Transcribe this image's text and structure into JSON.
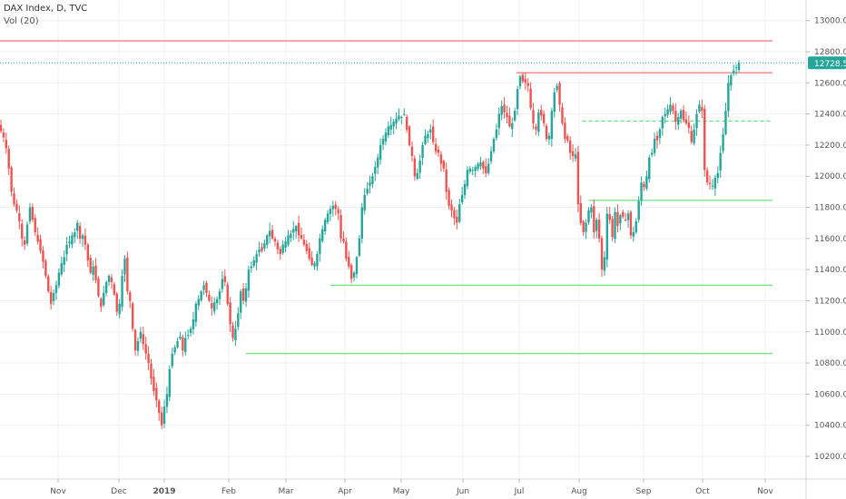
{
  "legend": {
    "title": "DAX Index, D, TVC",
    "indicator": "Vol (20)"
  },
  "price_tag": "12728.5",
  "chart_data": {
    "type": "candlestick",
    "title": "DAX Index, D, TVC",
    "y_ticks": [
      "13000.0",
      "12800.0",
      "12600.0",
      "12400.0",
      "12200.0",
      "12000.0",
      "11800.0",
      "11600.0",
      "11400.0",
      "11200.0",
      "11000.0",
      "10800.0",
      "10600.0",
      "10400.0",
      "10200.0"
    ],
    "y_tick_values": [
      13000,
      12800,
      12600,
      12400,
      12200,
      12000,
      11800,
      11600,
      11400,
      11200,
      11000,
      10800,
      10600,
      10400,
      10200
    ],
    "x_ticks": [
      {
        "label": "Nov",
        "x_index": 0
      },
      {
        "label": "Dec",
        "x_index": 1
      },
      {
        "label": "2019",
        "x_index": 2,
        "bold": true
      },
      {
        "label": "Feb",
        "x_index": 3
      },
      {
        "label": "Mar",
        "x_index": 4
      },
      {
        "label": "Apr",
        "x_index": 5
      },
      {
        "label": "May",
        "x_index": 6
      },
      {
        "label": "Jun",
        "x_index": 7
      },
      {
        "label": "Jul",
        "x_index": 8
      },
      {
        "label": "Aug",
        "x_index": 9
      },
      {
        "label": "Sep",
        "x_index": 10
      },
      {
        "label": "Oct",
        "x_index": 11
      },
      {
        "label": "Nov",
        "x_index": 12
      }
    ],
    "ylim": [
      10080,
      13080
    ],
    "grid": true,
    "colors": {
      "up": "#26a69a",
      "down": "#ef5350",
      "support": "#4cd964",
      "resistance": "#ef5350",
      "last_price": "#26a69a",
      "grid": "#eef0f3"
    },
    "horizontal_levels": [
      {
        "name": "resistance-top",
        "price": 12870,
        "x_start": -8,
        "x_end": 12,
        "color": "#ef5350",
        "style": "solid"
      },
      {
        "name": "resistance-july",
        "price": 12665,
        "x_start": 7.95,
        "x_end": 12,
        "color": "#ef5350",
        "style": "solid"
      },
      {
        "name": "support-aug-dashed",
        "price": 12355,
        "x_start": 9.05,
        "x_end": 12,
        "color": "#4cd964",
        "style": "dashed"
      },
      {
        "name": "support-aug",
        "price": 11845,
        "x_start": 9.15,
        "x_end": 12,
        "color": "#4cd964",
        "style": "solid"
      },
      {
        "name": "support-march",
        "price": 11300,
        "x_start": 4.75,
        "x_end": 12,
        "color": "#4cd964",
        "style": "solid"
      },
      {
        "name": "support-feb",
        "price": 10860,
        "x_start": 3.3,
        "x_end": 12,
        "color": "#4cd964",
        "style": "solid"
      },
      {
        "name": "last-price",
        "price": 12728.5,
        "x_start": -8,
        "x_end": 13,
        "color": "#26a69a",
        "style": "dotted"
      }
    ],
    "closes": [
      12290,
      12250,
      12180,
      12050,
      11900,
      11820,
      11780,
      11710,
      11600,
      11560,
      11690,
      11800,
      11720,
      11640,
      11580,
      11520,
      11450,
      11360,
      11260,
      11180,
      11250,
      11300,
      11380,
      11440,
      11480,
      11560,
      11580,
      11620,
      11640,
      11700,
      11600,
      11620,
      11560,
      11460,
      11380,
      11420,
      11330,
      11230,
      11160,
      11250,
      11320,
      11360,
      11320,
      11240,
      11130,
      11180,
      11360,
      11470,
      11260,
      11200,
      11020,
      10880,
      10940,
      11000,
      10920,
      10860,
      10800,
      10700,
      10620,
      10560,
      10480,
      10400,
      10520,
      10600,
      10760,
      10860,
      10900,
      10940,
      10970,
      10880,
      10960,
      10980,
      11020,
      11080,
      11180,
      11210,
      11260,
      11300,
      11250,
      11200,
      11150,
      11190,
      11210,
      11260,
      11340,
      11320,
      11180,
      11050,
      10960,
      11020,
      11120,
      11260,
      11200,
      11280,
      11400,
      11420,
      11460,
      11500,
      11530,
      11520,
      11570,
      11620,
      11650,
      11600,
      11580,
      11530,
      11500,
      11560,
      11580,
      11620,
      11630,
      11660,
      11680,
      11620,
      11600,
      11560,
      11520,
      11470,
      11430,
      11440,
      11500,
      11600,
      11660,
      11720,
      11760,
      11790,
      11810,
      11790,
      11760,
      11600,
      11580,
      11470,
      11420,
      11340,
      11380,
      11480,
      11600,
      11800,
      11880,
      11920,
      11960,
      12000,
      12060,
      12120,
      12200,
      12240,
      12280,
      12320,
      12330,
      12350,
      12370,
      12390,
      12380,
      12400,
      12300,
      12200,
      12130,
      12000,
      12020,
      12100,
      12200,
      12260,
      12270,
      12300,
      12220,
      12160,
      12150,
      12080,
      12050,
      11900,
      11810,
      11780,
      11730,
      11700,
      11820,
      11880,
      11950,
      12040,
      12050,
      12040,
      12060,
      12080,
      12090,
      12050,
      12020,
      12080,
      12160,
      12240,
      12300,
      12400,
      12450,
      12410,
      12380,
      12320,
      12340,
      12420,
      12560,
      12640,
      12610,
      12600,
      12580,
      12440,
      12340,
      12300,
      12410,
      12390,
      12340,
      12240,
      12260,
      12420,
      12540,
      12580,
      12460,
      12340,
      12240,
      12230,
      12150,
      12130,
      12140,
      11820,
      11700,
      11640,
      11700,
      11780,
      11800,
      11640,
      11720,
      11600,
      11400,
      11480,
      11760,
      11720,
      11610,
      11770,
      11680,
      11750,
      11740,
      11720,
      11760,
      11620,
      11640,
      11710,
      11840,
      11960,
      11930,
      12000,
      12120,
      12150,
      12240,
      12230,
      12300,
      12380,
      12400,
      12430,
      12460,
      12420,
      12350,
      12380,
      12420,
      12360,
      12340,
      12310,
      12220,
      12300,
      12400,
      12460,
      12420,
      12040,
      11960,
      11950,
      11940,
      11990,
      12020,
      12150,
      12270,
      12420,
      12600,
      12650,
      12680,
      12700,
      12728.5
    ],
    "candles_note": "Daily OHLC candles from roughly mid-October 2018 to mid-October 2019; close values above are approximate readings off the price axis."
  }
}
